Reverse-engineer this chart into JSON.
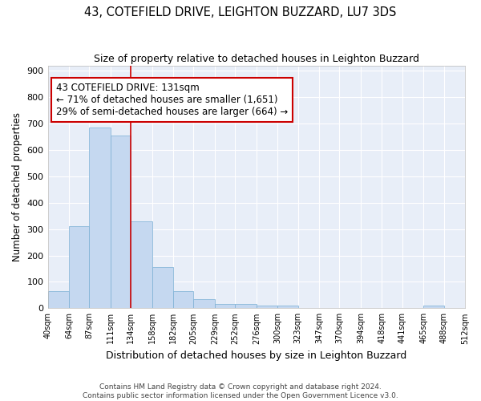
{
  "title": "43, COTEFIELD DRIVE, LEIGHTON BUZZARD, LU7 3DS",
  "subtitle": "Size of property relative to detached houses in Leighton Buzzard",
  "xlabel": "Distribution of detached houses by size in Leighton Buzzard",
  "ylabel": "Number of detached properties",
  "bar_color": "#c5d8f0",
  "bar_edge_color": "#7aafd4",
  "background_color": "#e8eef8",
  "grid_color": "#ffffff",
  "red_line_x": 134,
  "annotation_text": "43 COTEFIELD DRIVE: 131sqm\n← 71% of detached houses are smaller (1,651)\n29% of semi-detached houses are larger (664) →",
  "annotation_box_color": "#ffffff",
  "annotation_box_edge": "#cc0000",
  "footer_text": "Contains HM Land Registry data © Crown copyright and database right 2024.\nContains public sector information licensed under the Open Government Licence v3.0.",
  "bin_labels": [
    "40sqm",
    "64sqm",
    "87sqm",
    "111sqm",
    "134sqm",
    "158sqm",
    "182sqm",
    "205sqm",
    "229sqm",
    "252sqm",
    "276sqm",
    "300sqm",
    "323sqm",
    "347sqm",
    "370sqm",
    "394sqm",
    "418sqm",
    "441sqm",
    "465sqm",
    "488sqm",
    "512sqm"
  ],
  "bin_edges": [
    40,
    64,
    87,
    111,
    134,
    158,
    182,
    205,
    229,
    252,
    276,
    300,
    323,
    347,
    370,
    394,
    418,
    441,
    465,
    488,
    512
  ],
  "bar_heights": [
    65,
    310,
    685,
    655,
    330,
    155,
    65,
    35,
    15,
    15,
    10,
    10,
    0,
    0,
    0,
    0,
    0,
    0,
    10,
    0,
    0
  ],
  "ylim": [
    0,
    920
  ],
  "yticks": [
    0,
    100,
    200,
    300,
    400,
    500,
    600,
    700,
    800,
    900
  ]
}
